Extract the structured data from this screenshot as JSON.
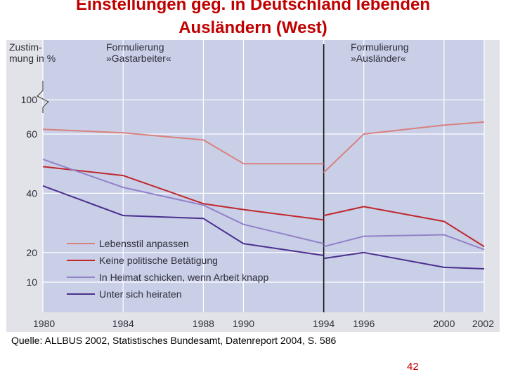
{
  "slide": {
    "title_line1": "Einstellungen geg. in Deutschland lebenden",
    "title_line2": "Ausländern (West)",
    "source": "Quelle: ALLBUS 2002, Statistisches Bundesamt, Datenreport 2004, S. 586",
    "page_number": "42"
  },
  "chart_data": {
    "type": "line",
    "title": "",
    "ylabel": "Zustimmung in %",
    "ylabel_lines": [
      "Zustim-",
      "mung in %"
    ],
    "xlabel": "",
    "section_labels": [
      {
        "lines": [
          "Formulierung",
          "»Gastarbeiter«"
        ],
        "from_x": 1980
      },
      {
        "lines": [
          "Formulierung",
          "»Ausländer«"
        ],
        "from_x": 1994
      }
    ],
    "divider_x": 1994,
    "x_ticks": [
      1980,
      1984,
      1988,
      1990,
      1994,
      1996,
      2000,
      2002
    ],
    "y_ticks": [
      10,
      20,
      40,
      60,
      100
    ],
    "y_axis_break": true,
    "grid": true,
    "legend_position": "lower-left",
    "series": [
      {
        "name": "Lebensstil anpassen",
        "color": "#d9817e",
        "segments": [
          {
            "x": [
              1980,
              1984,
              1988,
              1990,
              1994
            ],
            "y": [
              65.5,
              61.5,
              58,
              50,
              50
            ]
          },
          {
            "x": [
              1994,
              1996,
              2000,
              2002
            ],
            "y": [
              47,
              60,
              70.5,
              74
            ]
          }
        ]
      },
      {
        "name": "Keine politische Betätigung",
        "color": "#c0282e",
        "segments": [
          {
            "x": [
              1980,
              1984,
              1988,
              1990,
              1994
            ],
            "y": [
              49,
              46,
              36.5,
              34.5,
              31
            ]
          },
          {
            "x": [
              1994,
              1996,
              2000,
              2002
            ],
            "y": [
              32.5,
              35.5,
              30.5,
              22
            ]
          }
        ]
      },
      {
        "name": "In Heimat schicken, wenn Arbeit knapp",
        "color": "#9282c8",
        "segments": [
          {
            "x": [
              1980,
              1984,
              1988,
              1990,
              1994
            ],
            "y": [
              51.5,
              42,
              36,
              29.5,
              23
            ]
          },
          {
            "x": [
              1994,
              1996,
              2000,
              2002
            ],
            "y": [
              22,
              25.5,
              26,
              21
            ]
          }
        ]
      },
      {
        "name": "Unter sich heiraten",
        "color": "#4b2f8e",
        "segments": [
          {
            "x": [
              1980,
              1984,
              1988,
              1990,
              1994
            ],
            "y": [
              42.5,
              32.5,
              31.5,
              23,
              19
            ]
          },
          {
            "x": [
              1994,
              1996,
              2000,
              2002
            ],
            "y": [
              18,
              20,
              15,
              14.5
            ]
          }
        ]
      }
    ]
  }
}
